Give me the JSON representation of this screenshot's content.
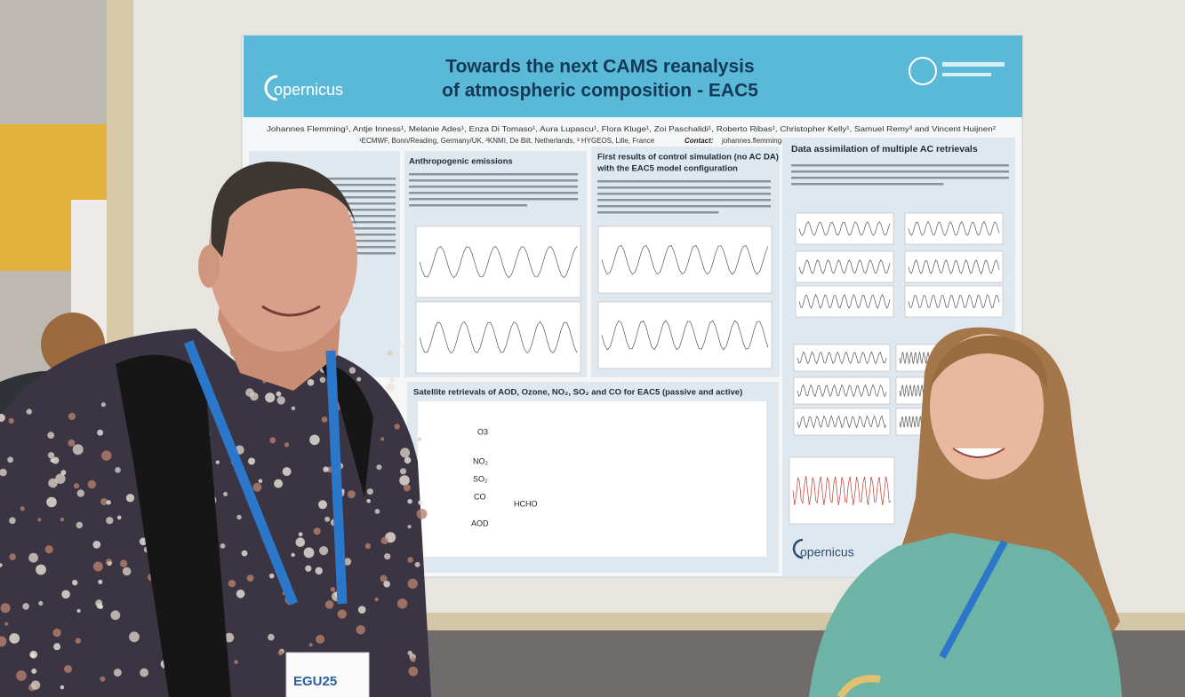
{
  "poster": {
    "title_lines": [
      "Towards the next CAMS reanalysis",
      "of atmospheric composition - EAC5"
    ],
    "logo": "opernicus",
    "authors": "Johannes Flemming¹, Antje Inness¹, Melanie Ades¹, Enza Di Tomaso¹, Aura Lupascu¹, Flora Kluge¹, Zoi Paschalidi¹, Roberto Ribas¹, Christopher Kelly¹, Samuel Remy³ and Vincent Huijnen²",
    "affiliations": "¹ECMWF, Bonn/Reading, Germany/UK, ²KNMI, De Bilt, Netherlands, ³ HYGEOS, Lille, France",
    "contact_label": "Contact:",
    "contact": "johannes.flemming@ecmwf.int",
    "sections": [
      {
        "heading": [
          "Anthropogenic emissions"
        ]
      },
      {
        "heading": [
          "First results of control simulation (no AC DA)",
          "with the EAC5 model configuration"
        ]
      },
      {
        "heading": [
          "Data assimilation of multiple AC retrievals"
        ]
      },
      {
        "heading": [
          "Satellite retrievals of AOD, Ozone, NO₂, SO₂ and CO for EAC5 (passive and active)"
        ]
      }
    ],
    "chart_labels": [
      "O3",
      "NO₂",
      "SO₂",
      "CO",
      "HCHO",
      "AOD"
    ],
    "footer_logo": "opernicus"
  },
  "badge": "EGU25"
}
